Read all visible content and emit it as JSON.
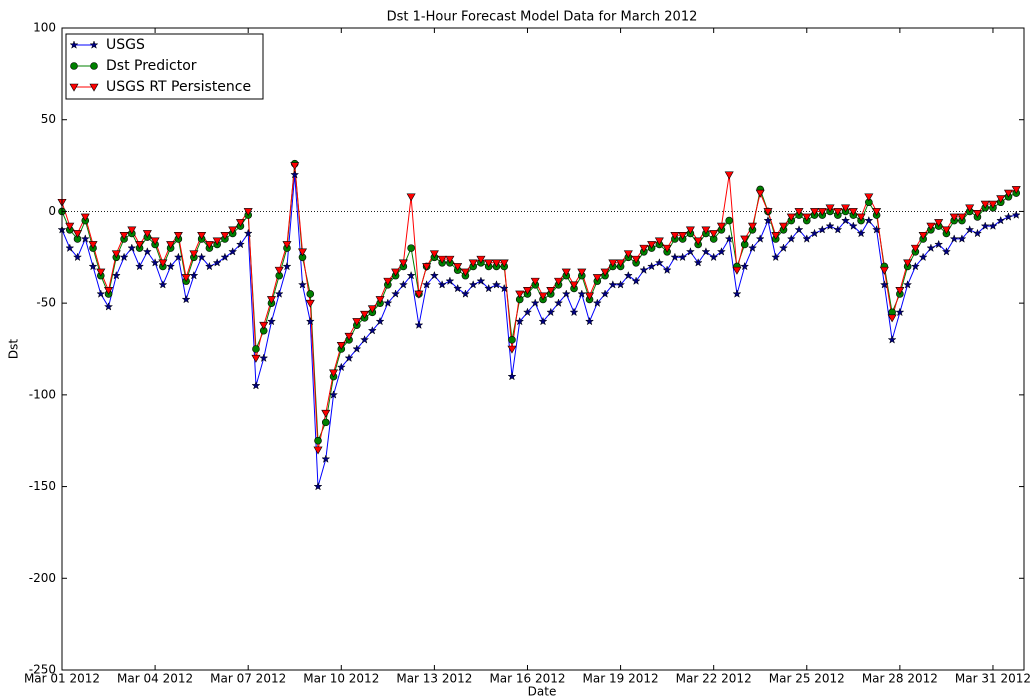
{
  "chart_data": {
    "type": "line",
    "title": "Dst 1-Hour Forecast Model Data for March 2012",
    "x_label": "Date",
    "y_label": "Dst",
    "x": [
      0,
      0.25,
      0.5,
      0.75,
      1,
      1.25,
      1.5,
      1.75,
      2,
      2.25,
      2.5,
      2.75,
      3,
      3.25,
      3.5,
      3.75,
      4,
      4.25,
      4.5,
      4.75,
      5,
      5.25,
      5.5,
      5.75,
      6,
      6.25,
      6.5,
      6.75,
      7,
      7.25,
      7.5,
      7.75,
      8,
      8.25,
      8.5,
      8.75,
      9,
      9.25,
      9.5,
      9.75,
      10,
      10.25,
      10.5,
      10.75,
      11,
      11.25,
      11.5,
      11.75,
      12,
      12.25,
      12.5,
      12.75,
      13,
      13.25,
      13.5,
      13.75,
      14,
      14.25,
      14.5,
      14.75,
      15,
      15.25,
      15.5,
      15.75,
      16,
      16.25,
      16.5,
      16.75,
      17,
      17.25,
      17.5,
      17.75,
      18,
      18.25,
      18.5,
      18.75,
      19,
      19.25,
      19.5,
      19.75,
      20,
      20.25,
      20.5,
      20.75,
      21,
      21.25,
      21.5,
      21.75,
      22,
      22.25,
      22.5,
      22.75,
      23,
      23.25,
      23.5,
      23.75,
      24,
      24.25,
      24.5,
      24.75,
      25,
      25.25,
      25.5,
      25.75,
      26,
      26.25,
      26.5,
      26.75,
      27,
      27.25,
      27.5,
      27.75,
      28,
      28.25,
      28.5,
      28.75,
      29,
      29.25,
      29.5,
      29.75,
      30,
      30.25,
      30.5,
      30.75
    ],
    "series": [
      {
        "name": "USGS",
        "color": "#0000ff",
        "marker_color": "#000080",
        "marker": "star",
        "values": [
          -10,
          -20,
          -25,
          -15,
          -30,
          -45,
          -52,
          -35,
          -25,
          -20,
          -30,
          -22,
          -28,
          -40,
          -30,
          -25,
          -48,
          -35,
          -25,
          -30,
          -28,
          -25,
          -22,
          -18,
          -12,
          -95,
          -80,
          -60,
          -45,
          -30,
          20,
          -40,
          -60,
          -150,
          -135,
          -100,
          -85,
          -80,
          -75,
          -70,
          -65,
          -60,
          -50,
          -45,
          -40,
          -35,
          -62,
          -40,
          -35,
          -40,
          -38,
          -42,
          -45,
          -40,
          -38,
          -42,
          -40,
          -42,
          -90,
          -60,
          -55,
          -50,
          -60,
          -55,
          -50,
          -45,
          -55,
          -45,
          -60,
          -50,
          -45,
          -40,
          -40,
          -35,
          -38,
          -32,
          -30,
          -28,
          -32,
          -25,
          -25,
          -22,
          -28,
          -22,
          -25,
          -22,
          -15,
          -45,
          -30,
          -20,
          -15,
          -5,
          -25,
          -20,
          -15,
          -10,
          -15,
          -12,
          -10,
          -8,
          -10,
          -5,
          -8,
          -12,
          -5,
          -10,
          -40,
          -70,
          -55,
          -40,
          -30,
          -25,
          -20,
          -18,
          -22,
          -15,
          -15,
          -10,
          -12,
          -8,
          -8,
          -5,
          -3,
          -2
        ]
      },
      {
        "name": "Dst Predictor",
        "color": "#008000",
        "marker_color": "#008000",
        "marker": "circle",
        "values": [
          0,
          -10,
          -15,
          -5,
          -20,
          -35,
          -45,
          -25,
          -15,
          -12,
          -20,
          -14,
          -18,
          -30,
          -20,
          -15,
          -38,
          -25,
          -15,
          -20,
          -18,
          -15,
          -12,
          -8,
          -2,
          -75,
          -65,
          -50,
          -35,
          -20,
          26,
          -25,
          -45,
          -125,
          -115,
          -90,
          -75,
          -70,
          -62,
          -58,
          -55,
          -50,
          -40,
          -35,
          -30,
          -20,
          -45,
          -30,
          -25,
          -28,
          -28,
          -32,
          -35,
          -30,
          -28,
          -30,
          -30,
          -30,
          -70,
          -48,
          -45,
          -40,
          -48,
          -45,
          -40,
          -35,
          -42,
          -35,
          -48,
          -38,
          -35,
          -30,
          -30,
          -25,
          -28,
          -22,
          -20,
          -18,
          -22,
          -15,
          -15,
          -12,
          -18,
          -12,
          -15,
          -10,
          -5,
          -30,
          -18,
          -10,
          12,
          0,
          -15,
          -10,
          -5,
          -2,
          -5,
          -2,
          -2,
          0,
          -2,
          0,
          -2,
          -5,
          5,
          -2,
          -30,
          -55,
          -45,
          -30,
          -22,
          -15,
          -10,
          -8,
          -12,
          -5,
          -5,
          0,
          -3,
          2,
          2,
          5,
          8,
          10
        ]
      },
      {
        "name": "USGS RT Persistence",
        "color": "#ff0000",
        "marker_color": "#ff0000",
        "marker": "triangle",
        "values": [
          5,
          -8,
          -12,
          -3,
          -18,
          -33,
          -43,
          -23,
          -13,
          -10,
          -18,
          -12,
          -16,
          -28,
          -18,
          -13,
          -36,
          -23,
          -13,
          -18,
          -16,
          -13,
          -10,
          -6,
          0,
          -80,
          -62,
          -48,
          -32,
          -18,
          25,
          -22,
          -50,
          -130,
          -110,
          -88,
          -73,
          -68,
          -60,
          -56,
          -53,
          -48,
          -38,
          -33,
          -28,
          8,
          -45,
          -30,
          -23,
          -26,
          -26,
          -30,
          -33,
          -28,
          -26,
          -28,
          -28,
          -28,
          -75,
          -45,
          -43,
          -38,
          -46,
          -43,
          -38,
          -33,
          -40,
          -33,
          -46,
          -36,
          -33,
          -28,
          -28,
          -23,
          -26,
          -20,
          -18,
          -16,
          -20,
          -13,
          -13,
          -10,
          -16,
          -10,
          -12,
          -8,
          20,
          -32,
          -15,
          -8,
          10,
          0,
          -13,
          -8,
          -3,
          0,
          -3,
          0,
          0,
          2,
          0,
          2,
          0,
          -3,
          8,
          0,
          -32,
          -58,
          -43,
          -28,
          -20,
          -13,
          -8,
          -6,
          -10,
          -3,
          -3,
          2,
          -1,
          4,
          4,
          7,
          10,
          12
        ]
      }
    ],
    "xlim": [
      0,
      31
    ],
    "ylim": [
      -250,
      100
    ],
    "xticks": [
      {
        "value": 0,
        "label": "Mar 01 2012"
      },
      {
        "value": 3,
        "label": "Mar 04 2012"
      },
      {
        "value": 6,
        "label": "Mar 07 2012"
      },
      {
        "value": 9,
        "label": "Mar 10 2012"
      },
      {
        "value": 12,
        "label": "Mar 13 2012"
      },
      {
        "value": 15,
        "label": "Mar 16 2012"
      },
      {
        "value": 18,
        "label": "Mar 19 2012"
      },
      {
        "value": 21,
        "label": "Mar 22 2012"
      },
      {
        "value": 24,
        "label": "Mar 25 2012"
      },
      {
        "value": 27,
        "label": "Mar 28 2012"
      },
      {
        "value": 30,
        "label": "Mar 31 2012"
      }
    ],
    "yticks": [
      -250,
      -200,
      -150,
      -100,
      -50,
      0,
      50,
      100
    ],
    "legend": "upper left"
  }
}
